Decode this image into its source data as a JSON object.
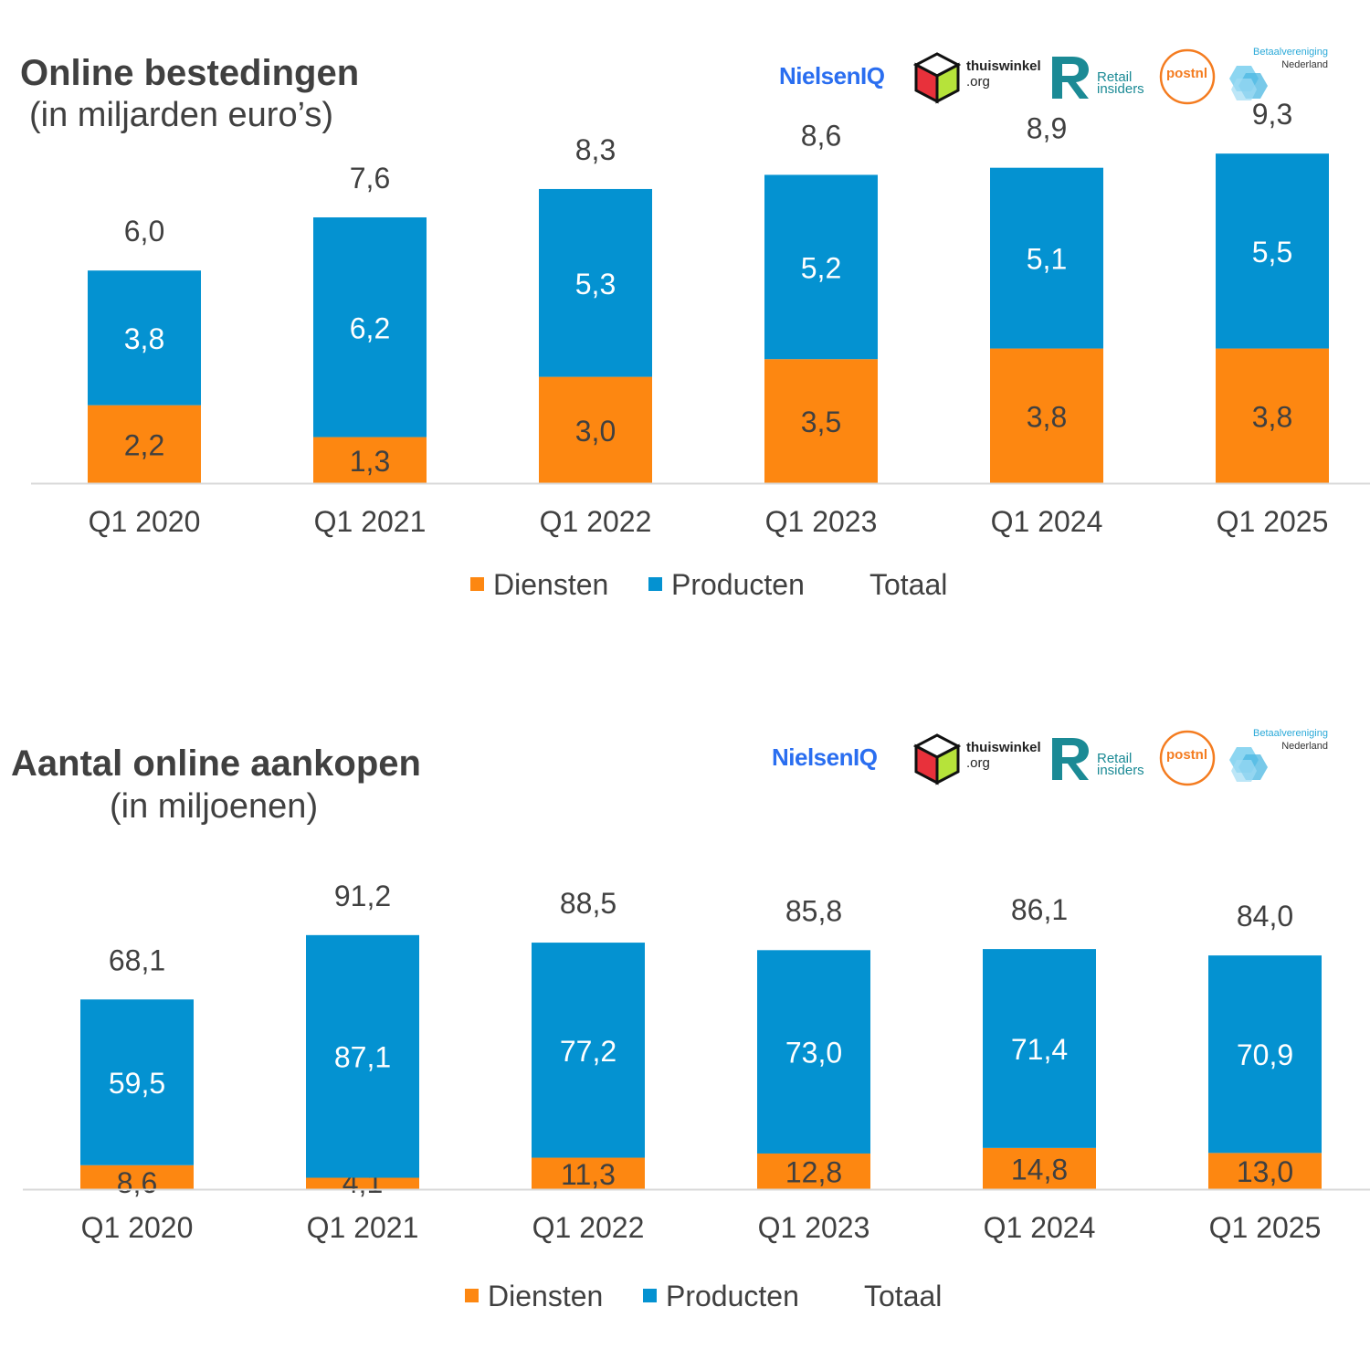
{
  "logos": {
    "nielsen": "NielsenIQ",
    "thuiswinkel_line1": "thuiswinkel",
    "thuiswinkel_line2": ".org",
    "retail_line1": "Retail",
    "retail_line2": "insiders",
    "postnl": "postnl",
    "betaal_line1": "Betaalvereniging",
    "betaal_line2": "Nederland"
  },
  "colors": {
    "diensten": "#fd8711",
    "producten": "#0492d1",
    "axis": "#d9d9d9",
    "text": "#404040"
  },
  "legend": {
    "diensten": "Diensten",
    "producten": "Producten",
    "totaal": "Totaal"
  },
  "chart_data": [
    {
      "type": "bar",
      "stacked": true,
      "title": "Online bestedingen",
      "subtitle": "(in miljarden euro’s)",
      "categories": [
        "Q1 2020",
        "Q1 2021",
        "Q1 2022",
        "Q1 2023",
        "Q1 2024",
        "Q1 2025"
      ],
      "series": [
        {
          "name": "Diensten",
          "values": [
            2.2,
            1.3,
            3.0,
            3.5,
            3.8,
            3.8
          ],
          "labels": [
            "2,2",
            "1,3",
            "3,0",
            "3,5",
            "3,8",
            "3,8"
          ]
        },
        {
          "name": "Producten",
          "values": [
            3.8,
            6.2,
            5.3,
            5.2,
            5.1,
            5.5
          ],
          "labels": [
            "3,8",
            "6,2",
            "5,3",
            "5,2",
            "5,1",
            "5,5"
          ]
        }
      ],
      "totals": [
        6.0,
        7.6,
        8.3,
        8.6,
        8.9,
        9.3
      ],
      "total_labels": [
        "6,0",
        "7,6",
        "8,3",
        "8,6",
        "8,9",
        "9,3"
      ],
      "legend_position": "bottom",
      "grid": false
    },
    {
      "type": "bar",
      "stacked": true,
      "title": "Aantal online aankopen",
      "subtitle": "(in miljoenen)",
      "categories": [
        "Q1 2020",
        "Q1 2021",
        "Q1 2022",
        "Q1 2023",
        "Q1 2024",
        "Q1 2025"
      ],
      "series": [
        {
          "name": "Diensten",
          "values": [
            8.6,
            4.1,
            11.3,
            12.8,
            14.8,
            13.0
          ],
          "labels": [
            "8,6",
            "4,1",
            "11,3",
            "12,8",
            "14,8",
            "13,0"
          ]
        },
        {
          "name": "Producten",
          "values": [
            59.5,
            87.1,
            77.2,
            73.0,
            71.4,
            70.9
          ],
          "labels": [
            "59,5",
            "87,1",
            "77,2",
            "73,0",
            "71,4",
            "70,9"
          ]
        }
      ],
      "totals": [
        68.1,
        91.2,
        88.5,
        85.8,
        86.1,
        84.0
      ],
      "total_labels": [
        "68,1",
        "91,2",
        "88,5",
        "85,8",
        "86,1",
        "84,0"
      ],
      "legend_position": "bottom",
      "grid": false
    }
  ]
}
